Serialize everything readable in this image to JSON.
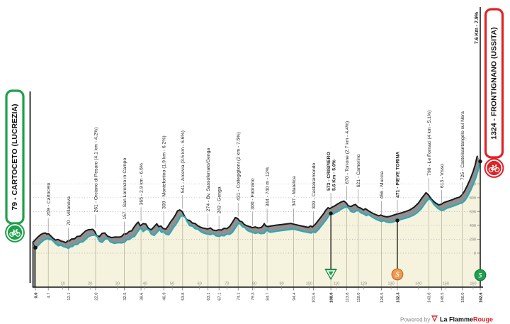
{
  "route": {
    "start": {
      "box_label": "79 - CARTOCETO (LUCREZIA)",
      "km": 0,
      "elev": 79,
      "km_label": "0.0"
    },
    "finish": {
      "box_label": "1324 - FRONTIGNANO (USSITA)",
      "km": 162.6,
      "elev": 1324,
      "km_label": "162.6",
      "final_climb_label": "7.6 Km - 7.9%"
    }
  },
  "chart_data": {
    "type": "area",
    "title": "",
    "x_range_km": [
      0,
      162.6
    ],
    "y_range_m": [
      0,
      1400
    ],
    "x_ticks": [
      10,
      20,
      30,
      40,
      50,
      60,
      70,
      80,
      90,
      100,
      110,
      120,
      130,
      140,
      150,
      160
    ],
    "y_ticks": [
      0,
      200,
      400,
      600,
      800,
      1000
    ],
    "grid": "dotted-horizontal",
    "waypoints": [
      {
        "km": 4.7,
        "elev": 209,
        "label": "209 - Cartoceto",
        "km_label": "4.7"
      },
      {
        "km": 12.1,
        "elev": 70,
        "label": "70 - Villanova",
        "km_label": "12.1"
      },
      {
        "km": 22.0,
        "elev": 261,
        "label": "261 - Orciano di Pesaro (4.1 km - 4.2%)",
        "km_label": "22.0"
      },
      {
        "km": 32.5,
        "elev": 157,
        "label": "157 - San Lorenzo in Campo",
        "km_label": "32.5"
      },
      {
        "km": 38.6,
        "elev": 365,
        "label": "365 - 2.9 km - 6.6%",
        "km_label": "38.6"
      },
      {
        "km": 46.9,
        "elev": 309,
        "label": "309 - Montefortino (1.9 km - 6.2%)",
        "km_label": "46.9"
      },
      {
        "km": 53.8,
        "elev": 541,
        "label": "541 - Arcevia (3.5 km - 6.6%)",
        "km_label": "53.8"
      },
      {
        "km": 63.1,
        "elev": 274,
        "label": "274 - Bv. Sassoferrato/Genga",
        "km_label": "63.1"
      },
      {
        "km": 67.1,
        "elev": 243,
        "label": "243 - Genga",
        "km_label": "67.1"
      },
      {
        "km": 74.1,
        "elev": 431,
        "label": "431 - Collegiglioni (2 km - 7.5%)",
        "km_label": "74.1"
      },
      {
        "km": 79.3,
        "elev": 300,
        "label": "300 - Fabriano",
        "km_label": "79.3"
      },
      {
        "km": 84.7,
        "elev": 344,
        "label": "344 - 740 m - 12%",
        "km_label": "84.7"
      },
      {
        "km": 94.4,
        "elev": 347,
        "label": "347 - Matelica",
        "km_label": "94.4"
      },
      {
        "km": 101.6,
        "elev": 309,
        "label": "309 - Castelraimondo",
        "km_label": "101.6"
      },
      {
        "km": 108.0,
        "elev": 573,
        "label": "573 - CRISPIERO",
        "label2": "5.6 Km - 5.0%",
        "bold": true,
        "dot": true,
        "marker": "feed",
        "km_label": "108.0"
      },
      {
        "km": 113.8,
        "elev": 670,
        "label": "670 - Torrone (2.7 km - 4.4%)",
        "km_label": "113.8"
      },
      {
        "km": 118.0,
        "elev": 621,
        "label": "621 - Camerino",
        "km_label": "118.0"
      },
      {
        "km": 126.5,
        "elev": 456,
        "label": "456 - Muccia",
        "km_label": "126.5"
      },
      {
        "km": 132.3,
        "elev": 471,
        "label": "471 - PIEVE TORINA",
        "bold": true,
        "dot": true,
        "marker": "sprint",
        "km_label": "132.3"
      },
      {
        "km": 143.8,
        "elev": 790,
        "label": "790 - Le Fornaci (4 km - 5.1%)",
        "km_label": "143.8"
      },
      {
        "km": 148.5,
        "elev": 613,
        "label": "613 - Visso",
        "km_label": "148.5"
      },
      {
        "km": 156.0,
        "elev": 725,
        "label": "725 - Castelsantangelo sul Nera",
        "km_label": "156.0"
      }
    ],
    "profile_km_elev": [
      [
        0,
        79
      ],
      [
        0.4,
        84
      ],
      [
        1,
        112
      ],
      [
        2,
        152
      ],
      [
        3,
        186
      ],
      [
        4,
        204
      ],
      [
        4.7,
        209
      ],
      [
        5.2,
        193
      ],
      [
        5.8,
        199
      ],
      [
        6.6,
        168
      ],
      [
        7.5,
        132
      ],
      [
        8.4,
        106
      ],
      [
        9.3,
        116
      ],
      [
        10.4,
        92
      ],
      [
        11.2,
        85
      ],
      [
        12.1,
        70
      ],
      [
        12.8,
        93
      ],
      [
        13.6,
        96
      ],
      [
        14.2,
        121
      ],
      [
        15.4,
        126
      ],
      [
        16.2,
        158
      ],
      [
        17.4,
        164
      ],
      [
        18.4,
        203
      ],
      [
        19.4,
        238
      ],
      [
        20.4,
        256
      ],
      [
        21.2,
        258
      ],
      [
        22,
        261
      ],
      [
        22.7,
        232
      ],
      [
        23.4,
        172
      ],
      [
        24.4,
        156
      ],
      [
        25.4,
        203
      ],
      [
        26.4,
        209
      ],
      [
        27.4,
        163
      ],
      [
        28.8,
        142
      ],
      [
        30.4,
        151
      ],
      [
        31.5,
        148
      ],
      [
        32.5,
        157
      ],
      [
        33.4,
        193
      ],
      [
        34.4,
        199
      ],
      [
        35.4,
        232
      ],
      [
        36.2,
        238
      ],
      [
        37,
        288
      ],
      [
        38,
        342
      ],
      [
        38.6,
        365
      ],
      [
        39.4,
        312
      ],
      [
        40.4,
        344
      ],
      [
        41.4,
        338
      ],
      [
        42.4,
        272
      ],
      [
        43.4,
        256
      ],
      [
        44.4,
        298
      ],
      [
        45.4,
        342
      ],
      [
        46.1,
        300
      ],
      [
        46.9,
        309
      ],
      [
        47.8,
        272
      ],
      [
        48.7,
        264
      ],
      [
        49.5,
        308
      ],
      [
        50.4,
        366
      ],
      [
        51.4,
        418
      ],
      [
        52.2,
        468
      ],
      [
        53,
        528
      ],
      [
        53.8,
        541
      ],
      [
        54.7,
        518
      ],
      [
        55.4,
        462
      ],
      [
        56.4,
        396
      ],
      [
        57.4,
        390
      ],
      [
        58.4,
        352
      ],
      [
        59.4,
        346
      ],
      [
        60.4,
        312
      ],
      [
        61.4,
        292
      ],
      [
        62.2,
        280
      ],
      [
        63.1,
        274
      ],
      [
        64,
        266
      ],
      [
        65,
        281
      ],
      [
        66,
        251
      ],
      [
        67.1,
        243
      ],
      [
        68,
        256
      ],
      [
        69,
        251
      ],
      [
        70,
        276
      ],
      [
        71,
        271
      ],
      [
        72,
        301
      ],
      [
        73,
        358
      ],
      [
        74.1,
        431
      ],
      [
        74.9,
        421
      ],
      [
        75.7,
        381
      ],
      [
        76.5,
        371
      ],
      [
        77.4,
        331
      ],
      [
        78.4,
        311
      ],
      [
        79.3,
        300
      ],
      [
        80.4,
        286
      ],
      [
        81.4,
        296
      ],
      [
        82.4,
        281
      ],
      [
        83.6,
        288
      ],
      [
        84.3,
        318
      ],
      [
        84.7,
        344
      ],
      [
        85.2,
        311
      ],
      [
        86,
        301
      ],
      [
        87.4,
        311
      ],
      [
        89,
        321
      ],
      [
        91,
        331
      ],
      [
        93,
        341
      ],
      [
        94.4,
        347
      ],
      [
        96,
        331
      ],
      [
        98,
        312
      ],
      [
        100,
        296
      ],
      [
        100.8,
        290
      ],
      [
        101.6,
        309
      ],
      [
        102.3,
        296
      ],
      [
        103.4,
        338
      ],
      [
        104.4,
        388
      ],
      [
        105.4,
        438
      ],
      [
        106.4,
        488
      ],
      [
        107.2,
        538
      ],
      [
        108,
        573
      ],
      [
        108.7,
        561
      ],
      [
        109.4,
        579
      ],
      [
        110.4,
        599
      ],
      [
        111.4,
        624
      ],
      [
        112.7,
        654
      ],
      [
        113.8,
        670
      ],
      [
        114.7,
        641
      ],
      [
        115.4,
        601
      ],
      [
        116.4,
        591
      ],
      [
        117.2,
        609
      ],
      [
        118,
        621
      ],
      [
        119,
        581
      ],
      [
        120,
        566
      ],
      [
        121,
        541
      ],
      [
        121.7,
        559
      ],
      [
        122.7,
        531
      ],
      [
        124,
        501
      ],
      [
        125,
        481
      ],
      [
        126.5,
        456
      ],
      [
        127.4,
        469
      ],
      [
        128.2,
        451
      ],
      [
        129.4,
        441
      ],
      [
        130.4,
        446
      ],
      [
        131.2,
        456
      ],
      [
        132.3,
        471
      ],
      [
        133.4,
        484
      ],
      [
        135,
        501
      ],
      [
        136.4,
        519
      ],
      [
        138,
        544
      ],
      [
        139.4,
        579
      ],
      [
        141,
        639
      ],
      [
        142.4,
        719
      ],
      [
        143.8,
        790
      ],
      [
        144.7,
        759
      ],
      [
        145.7,
        701
      ],
      [
        147,
        651
      ],
      [
        148.5,
        613
      ],
      [
        149.4,
        624
      ],
      [
        150.4,
        649
      ],
      [
        152,
        669
      ],
      [
        153.4,
        689
      ],
      [
        155,
        714
      ],
      [
        156,
        725
      ],
      [
        157,
        761
      ],
      [
        158,
        821
      ],
      [
        159,
        901
      ],
      [
        160,
        991
      ],
      [
        161,
        1091
      ],
      [
        161.8,
        1191
      ],
      [
        162.3,
        1281
      ],
      [
        162.6,
        1324
      ]
    ]
  },
  "markers": {
    "feed_zone": {
      "km": 108.0,
      "shape": "inverted-triangle"
    },
    "sprint": {
      "km": 132.3,
      "glyph": "S"
    },
    "finish_badge": {
      "km": 162.6,
      "glyph": "5"
    }
  },
  "footer": {
    "powered_by": "Powered by",
    "brand": "La Flamme",
    "brand_accent": "Rouge"
  },
  "colors": {
    "start_green": "#1fa04a",
    "finish_red": "#e02125",
    "profile_teal": "#2ca9b6",
    "ribbon_gray": "#909090",
    "ribbon_edge": "#1a1a1a",
    "area_cream": "#f5f3de",
    "sprint_orange": "#f09a50",
    "marker_green": "#21a04f",
    "marker_green_dark": "#0b7a38",
    "grid_gray": "#a8a8a8"
  }
}
